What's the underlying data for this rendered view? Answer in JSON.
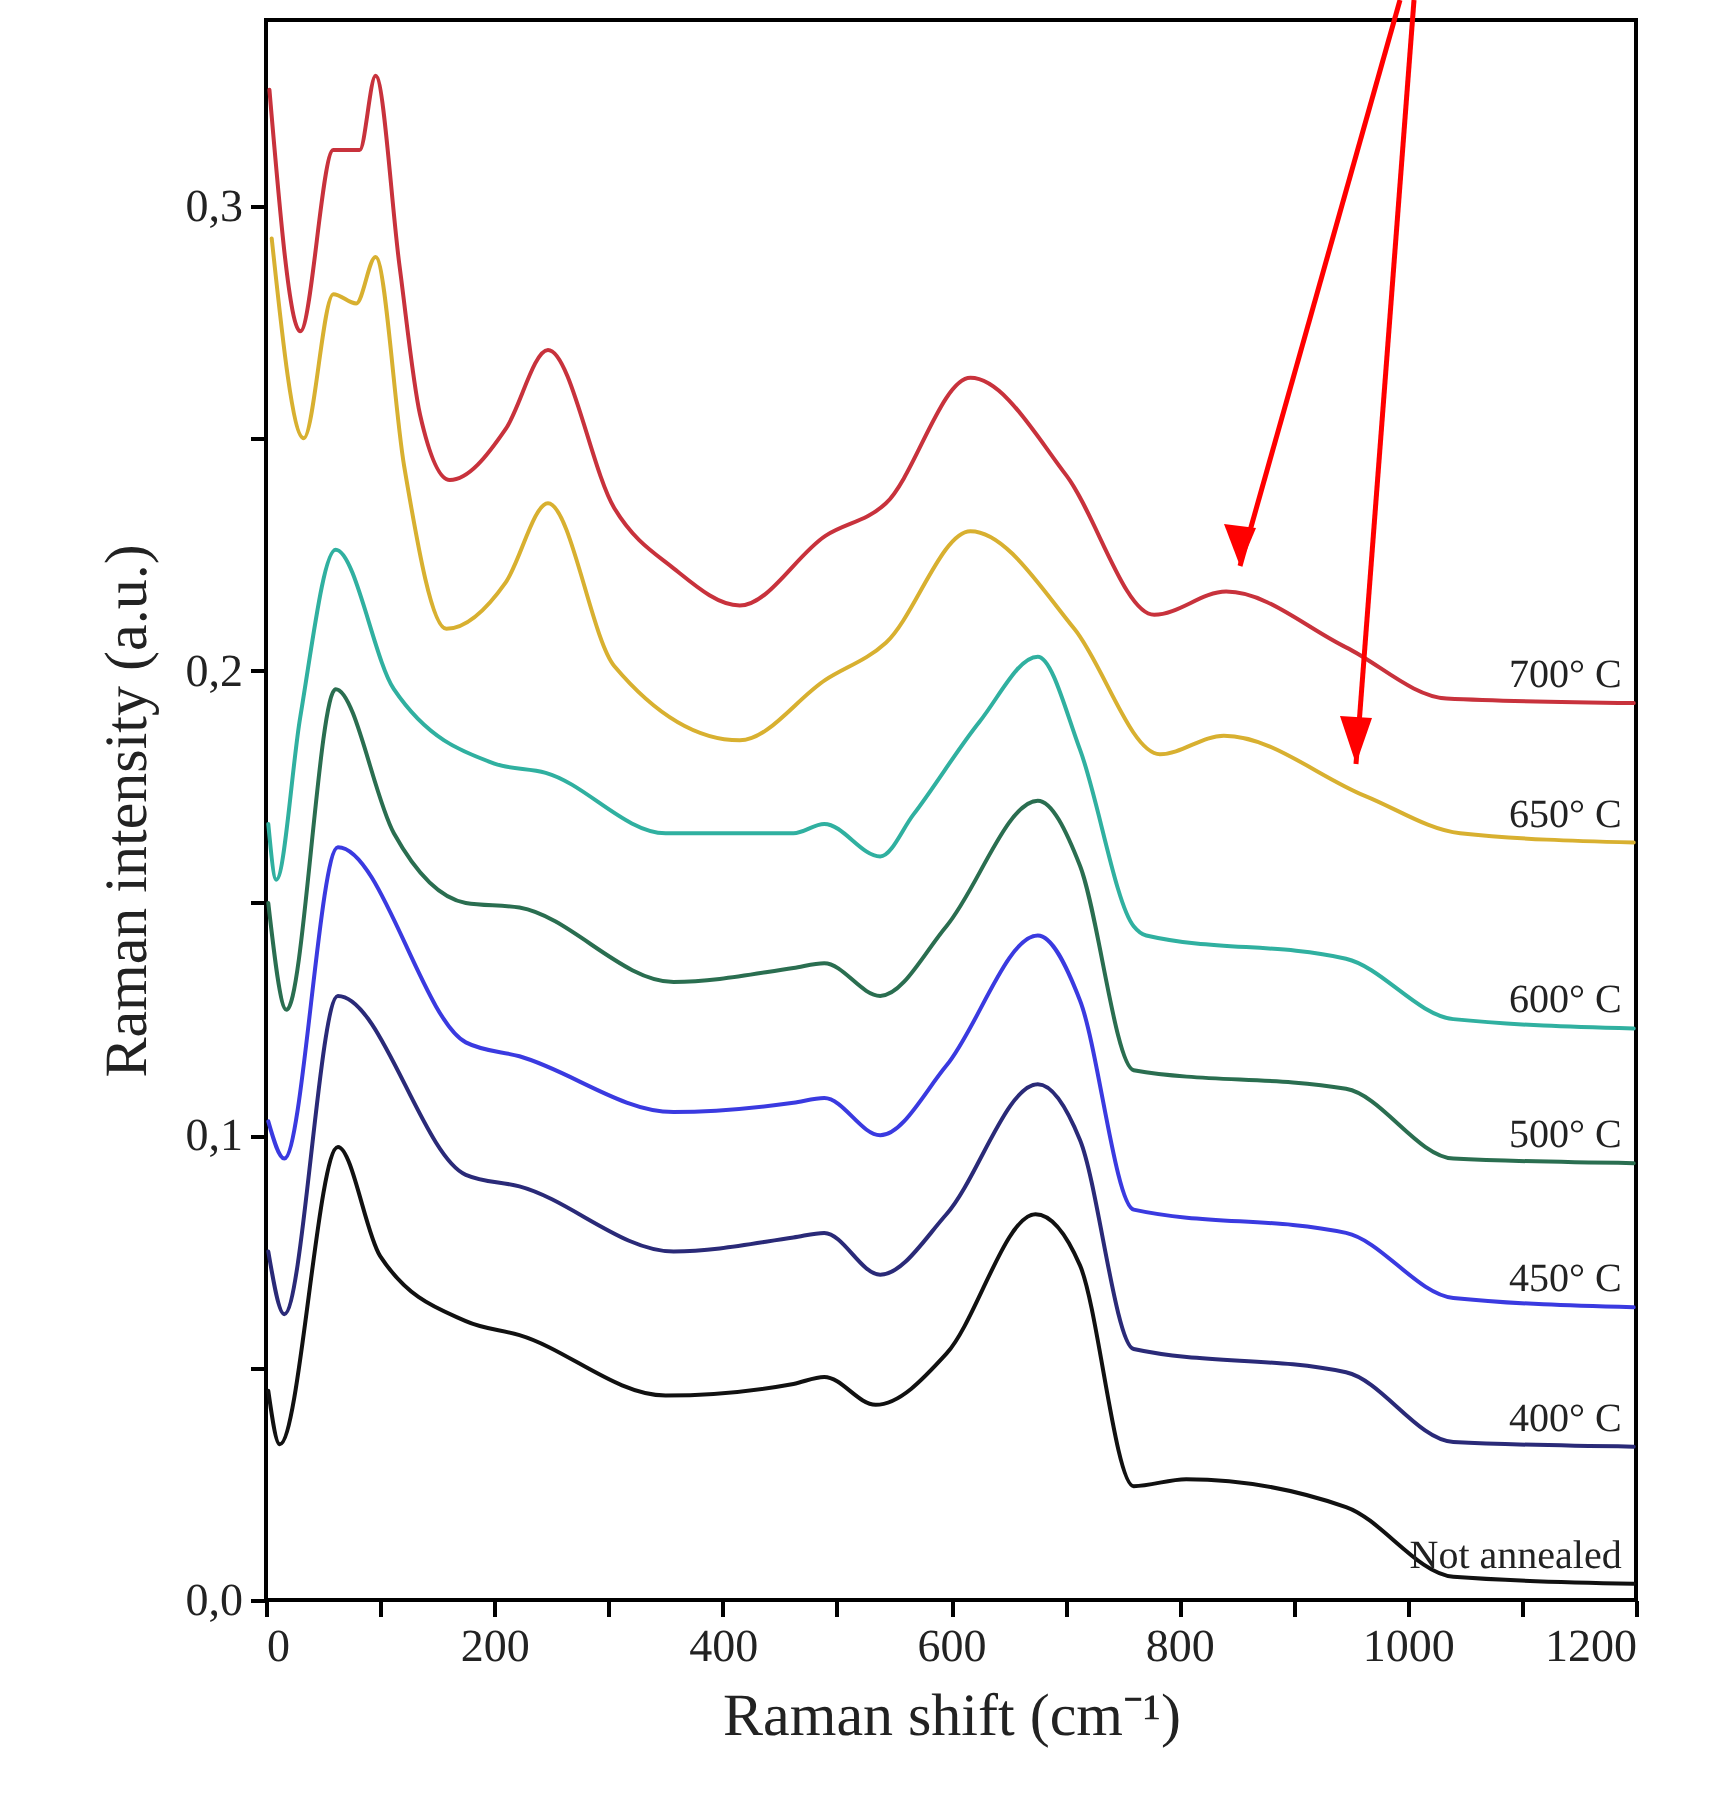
{
  "chart_data": {
    "type": "line",
    "xlabel": "Raman shift (cm⁻¹)",
    "ylabel": "Raman intensity (a.u.)",
    "xlim": [
      0,
      1200
    ],
    "ylim": [
      0,
      0.34
    ],
    "xticks": [
      0,
      {
        "value": 100,
        "label": null
      },
      200,
      {
        "value": 300,
        "label": null
      },
      400,
      {
        "value": 500,
        "label": null
      },
      600,
      {
        "value": 700,
        "label": null
      },
      800,
      {
        "value": 900,
        "label": null
      },
      1000,
      {
        "value": 1100,
        "label": null
      },
      1200
    ],
    "yticks": [
      {
        "value": 0,
        "label": "0,0"
      },
      {
        "value": 0.05,
        "label": null
      },
      {
        "value": 0.1,
        "label": "0,1"
      },
      {
        "value": 0.15,
        "label": null
      },
      {
        "value": 0.2,
        "label": "0,2"
      },
      {
        "value": 0.25,
        "label": null
      },
      {
        "value": 0.3,
        "label": "0,3"
      }
    ],
    "grid": false,
    "marker": "none",
    "line_style": "solid",
    "series": [
      {
        "name": "700° C",
        "color": "#c8323c",
        "x": [
          3,
          30,
          59,
          82,
          96,
          117,
          135,
          161,
          210,
          247,
          305,
          357,
          415,
          490,
          543,
          617,
          701,
          778,
          841,
          946,
          1034,
          1198
        ],
        "values": [
          0.325,
          0.273,
          0.312,
          0.312,
          0.328,
          0.287,
          0.255,
          0.241,
          0.252,
          0.269,
          0.235,
          0.222,
          0.214,
          0.229,
          0.236,
          0.263,
          0.242,
          0.212,
          0.217,
          0.205,
          0.194,
          0.193
        ]
      },
      {
        "name": "650° C",
        "color": "#d8b030",
        "x": [
          5,
          33,
          59,
          79,
          96,
          121,
          158,
          210,
          247,
          305,
          415,
          490,
          543,
          617,
          708,
          783,
          839,
          963,
          1046,
          1198
        ],
        "values": [
          0.293,
          0.25,
          0.281,
          0.279,
          0.289,
          0.244,
          0.209,
          0.219,
          0.236,
          0.201,
          0.185,
          0.198,
          0.206,
          0.23,
          0.209,
          0.182,
          0.186,
          0.173,
          0.165,
          0.163
        ]
      },
      {
        "name": "600° C",
        "color": "#30b0a0",
        "x": [
          2,
          9,
          30,
          61,
          112,
          200,
          245,
          350,
          462,
          489,
          538,
          567,
          625,
          676,
          713,
          760,
          771,
          946,
          1040,
          1198
        ],
        "values": [
          0.167,
          0.155,
          0.19,
          0.226,
          0.196,
          0.18,
          0.178,
          0.165,
          0.165,
          0.167,
          0.16,
          0.169,
          0.189,
          0.203,
          0.183,
          0.145,
          0.143,
          0.138,
          0.125,
          0.123
        ]
      },
      {
        "name": "500° C",
        "color": "#2a6e50",
        "x": [
          2,
          18,
          61,
          112,
          175,
          222,
          357,
          462,
          489,
          538,
          596,
          676,
          713,
          760,
          946,
          1040,
          1198
        ],
        "values": [
          0.15,
          0.127,
          0.196,
          0.165,
          0.15,
          0.149,
          0.133,
          0.136,
          0.137,
          0.13,
          0.145,
          0.172,
          0.158,
          0.114,
          0.11,
          0.095,
          0.094
        ]
      },
      {
        "name": "450° C",
        "color": "#3a3ae0",
        "x": [
          2,
          16,
          63,
          175,
          222,
          357,
          462,
          489,
          538,
          596,
          676,
          713,
          760,
          946,
          1040,
          1198
        ],
        "values": [
          0.103,
          0.095,
          0.162,
          0.12,
          0.117,
          0.105,
          0.107,
          0.108,
          0.1,
          0.115,
          0.143,
          0.129,
          0.084,
          0.079,
          0.065,
          0.063
        ]
      },
      {
        "name": "400° C",
        "color": "#2a2a78",
        "x": [
          2,
          16,
          63,
          175,
          222,
          357,
          462,
          489,
          538,
          596,
          676,
          713,
          760,
          946,
          1040,
          1198
        ],
        "values": [
          0.075,
          0.0615,
          0.13,
          0.0915,
          0.089,
          0.075,
          0.078,
          0.079,
          0.07,
          0.083,
          0.111,
          0.099,
          0.054,
          0.049,
          0.034,
          0.033
        ]
      },
      {
        "name": "Not annealed",
        "color": "#111111",
        "x": [
          2,
          12,
          63,
          100,
          175,
          222,
          350,
          462,
          489,
          534,
          596,
          674,
          713,
          760,
          806,
          946,
          1040,
          1198
        ],
        "values": [
          0.045,
          0.0335,
          0.0975,
          0.074,
          0.06,
          0.057,
          0.044,
          0.0465,
          0.048,
          0.042,
          0.053,
          0.083,
          0.072,
          0.0245,
          0.026,
          0.02,
          0.005,
          0.0035
        ]
      }
    ]
  }
}
